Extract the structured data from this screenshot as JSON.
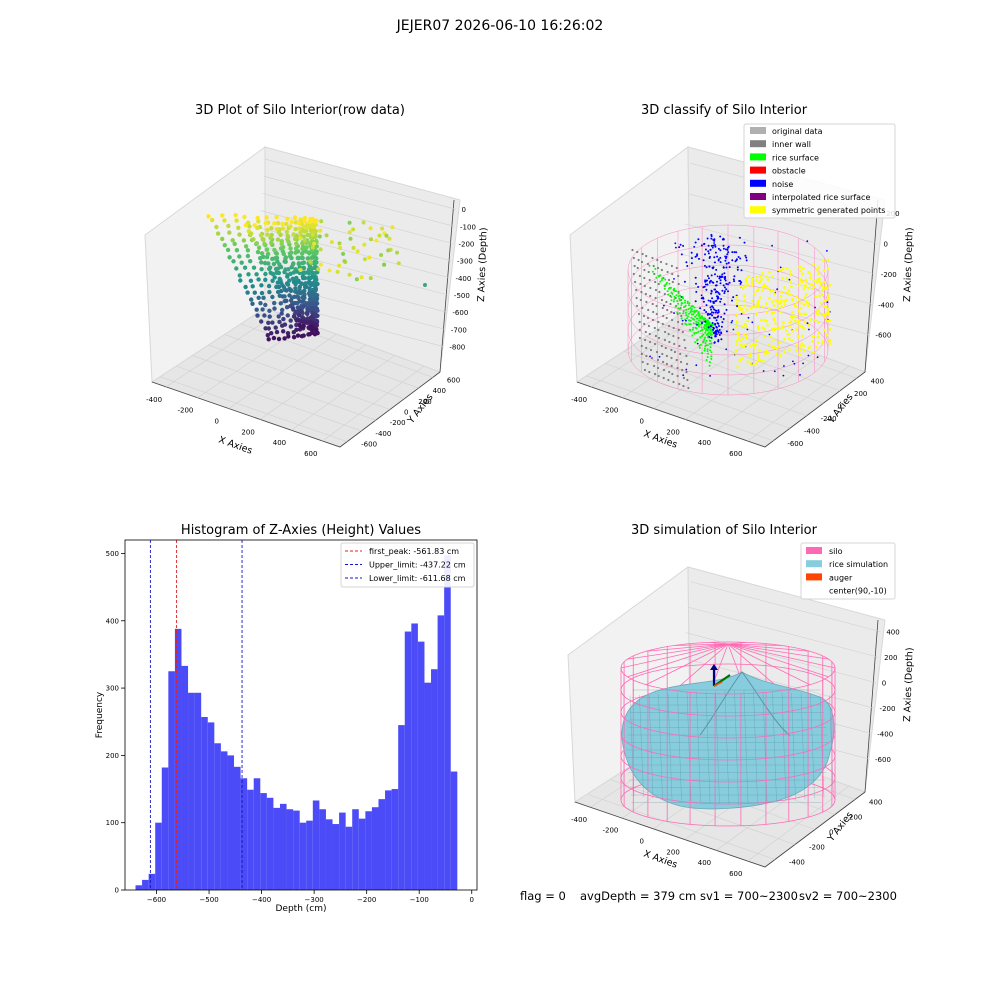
{
  "figure_title": "JEJER07 2026-06-10 16:26:02",
  "footer": {
    "flag": "flag = 0",
    "avg_depth": "avgDepth = 379 cm",
    "sv1": "sv1 = 700~2300",
    "sv2": "sv2 = 700~2300"
  },
  "colors": {
    "histogram_bar": "#4b4bf7",
    "first_peak_line": "#e02020",
    "limit_line": "#1515c8",
    "silo_wire": "#ff69b4",
    "rice_surface": "#87cdde",
    "original": "#b0b0b0",
    "inner_wall": "#808080",
    "rice": "#00ff00",
    "obstacle": "#ff0000",
    "noise": "#0000ff",
    "interpolated": "#800080",
    "symmetric": "#ffff00",
    "auger": "#ff4500"
  },
  "chart_data": [
    {
      "type": "scatter",
      "subtype": "3d",
      "title": "3D Plot of Silo Interior(row data)",
      "xlabel": "X Axies",
      "ylabel": "Y Axies",
      "zlabel": "Z Axies (Depth)",
      "x_ticks": [
        "-400",
        "-200",
        "0",
        "200",
        "400",
        "600"
      ],
      "y_ticks": [
        "-600",
        "-400",
        "-200",
        "0",
        "200",
        "400",
        "600"
      ],
      "z_ticks": [
        "0",
        "-100",
        "-200",
        "-300",
        "-400",
        "-500",
        "-600",
        "-700",
        "-800"
      ],
      "colormap": "viridis"
    },
    {
      "type": "scatter",
      "subtype": "3d",
      "title": "3D classify of Silo Interior",
      "xlabel": "X Axies",
      "ylabel": "Y Axies",
      "zlabel": "Z Axies (Depth)",
      "x_ticks": [
        "-400",
        "-200",
        "0",
        "200",
        "400",
        "600"
      ],
      "y_ticks": [
        "-600",
        "-400",
        "-200",
        "0",
        "200",
        "400"
      ],
      "z_ticks": [
        "200",
        "0",
        "-200",
        "-400",
        "-600"
      ],
      "legend_position": "top-right",
      "legend": [
        {
          "label": "original data",
          "color": "#b0b0b0"
        },
        {
          "label": "inner wall",
          "color": "#808080"
        },
        {
          "label": "rice surface",
          "color": "#00ff00"
        },
        {
          "label": "obstacle",
          "color": "#ff0000"
        },
        {
          "label": "noise",
          "color": "#0000ff"
        },
        {
          "label": "interpolated rice surface",
          "color": "#800080"
        },
        {
          "label": "symmetric generated points",
          "color": "#ffff00"
        }
      ]
    },
    {
      "type": "bar",
      "subtype": "histogram",
      "title": "Histogram of Z-Axies (Height) Values",
      "xlabel": "Depth (cm)",
      "ylabel": "Frequency",
      "xlim": [
        -660,
        10
      ],
      "ylim": [
        0,
        520
      ],
      "x_ticks": [
        -600,
        -500,
        -400,
        -300,
        -200,
        -100,
        0
      ],
      "y_ticks": [
        0,
        100,
        200,
        300,
        400,
        500
      ],
      "bin_start": -640,
      "bin_width": 12.5,
      "values": [
        7,
        15,
        24,
        100,
        182,
        325,
        388,
        333,
        293,
        293,
        257,
        249,
        218,
        206,
        200,
        183,
        166,
        149,
        166,
        144,
        137,
        122,
        128,
        120,
        118,
        100,
        103,
        133,
        120,
        105,
        98,
        115,
        94,
        120,
        106,
        117,
        123,
        135,
        148,
        150,
        245,
        384,
        396,
        369,
        308,
        328,
        408,
        497,
        176
      ],
      "vlines": [
        {
          "label": "first_peak: -561.83 cm",
          "x": -561.83,
          "color": "#e02020"
        },
        {
          "label": "Upper_limit: -437.22 cm",
          "x": -437.22,
          "color": "#1515c8"
        },
        {
          "label": "Lower_limit: -611.68 cm",
          "x": -611.68,
          "color": "#1515c8"
        }
      ],
      "legend_position": "top-right"
    },
    {
      "type": "area",
      "subtype": "3d-surface",
      "title": "3D simulation of Silo Interior",
      "xlabel": "X Axies",
      "ylabel": "Y Axies",
      "zlabel": "Z Axies (Depth)",
      "x_ticks": [
        "-400",
        "-200",
        "0",
        "200",
        "400",
        "600"
      ],
      "y_ticks": [
        "-400",
        "-200",
        "0",
        "200",
        "400"
      ],
      "z_ticks": [
        "400",
        "200",
        "0",
        "-200",
        "-400",
        "-600"
      ],
      "legend_position": "top-right",
      "legend": [
        {
          "label": "silo",
          "color": "#ff69b4"
        },
        {
          "label": "rice simulation",
          "color": "#87cdde"
        },
        {
          "label": "auger",
          "color": "#ff4500"
        },
        {
          "label": "center(90,-10)",
          "color": ""
        }
      ]
    }
  ]
}
